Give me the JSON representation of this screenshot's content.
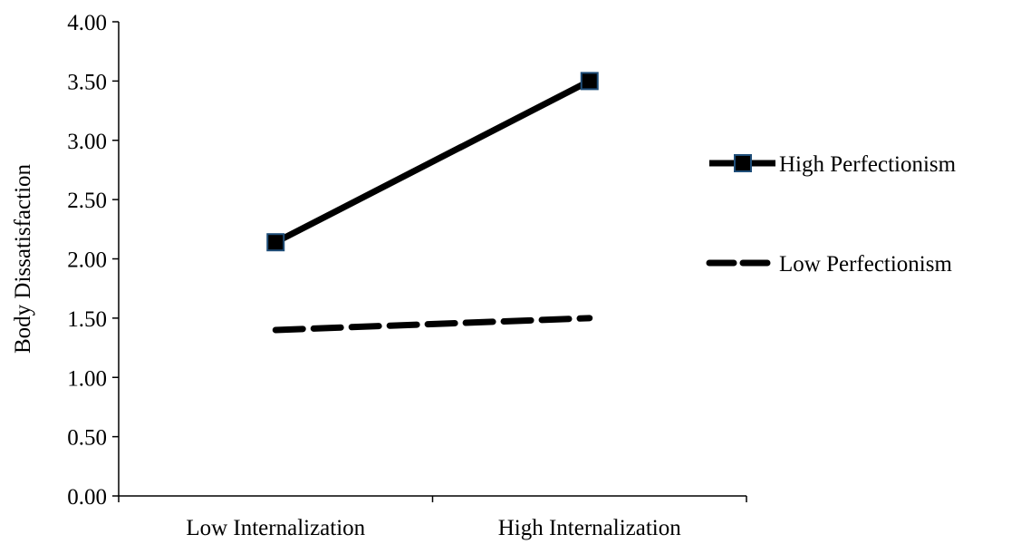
{
  "chart_data": {
    "type": "line",
    "title": "",
    "xlabel": "",
    "ylabel": "Body Dissatisfaction",
    "categories": [
      "Low Internalization",
      "High Internalization"
    ],
    "ylim": [
      0,
      4
    ],
    "y_ticks": [
      "0.00",
      "0.50",
      "1.00",
      "1.50",
      "2.00",
      "2.50",
      "3.00",
      "3.50",
      "4.00"
    ],
    "grid": false,
    "legend_position": "right",
    "series": [
      {
        "name": "High Perfectionism",
        "values": [
          2.14,
          3.5
        ],
        "style": "solid",
        "marker": "square",
        "color": "#000000",
        "marker_edge_color": "#1f4e79"
      },
      {
        "name": "Low Perfectionism",
        "values": [
          1.4,
          1.5
        ],
        "style": "dashed",
        "marker": "none",
        "color": "#000000"
      }
    ]
  }
}
